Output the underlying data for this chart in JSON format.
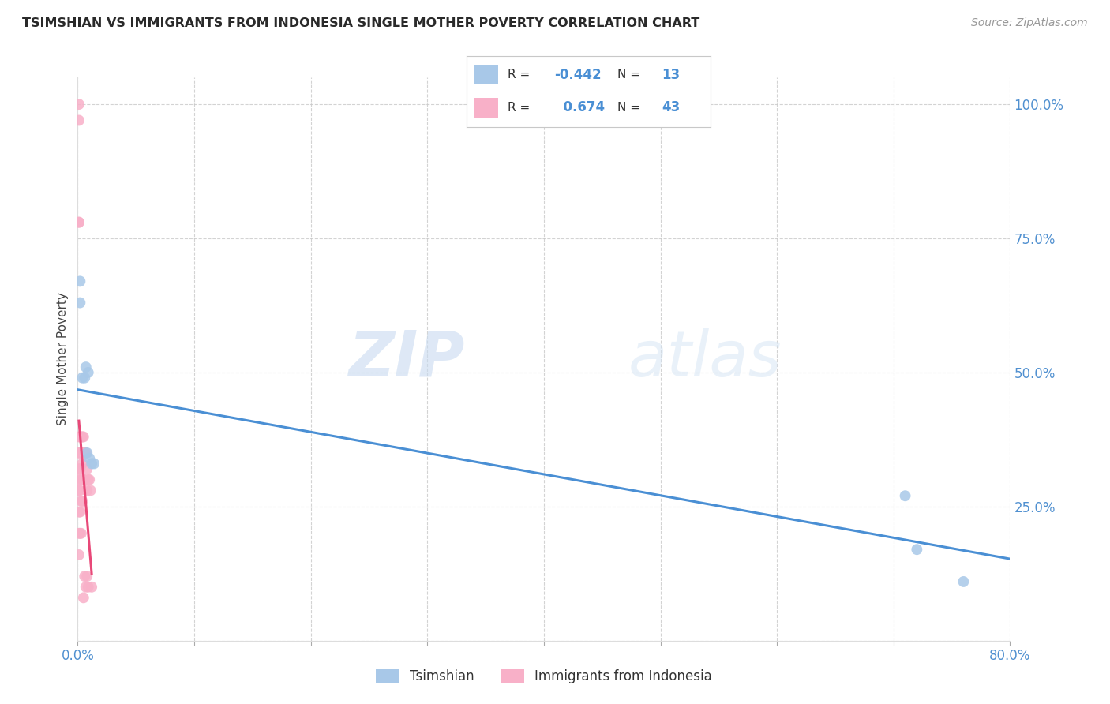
{
  "title": "TSIMSHIAN VS IMMIGRANTS FROM INDONESIA SINGLE MOTHER POVERTY CORRELATION CHART",
  "source": "Source: ZipAtlas.com",
  "ylabel": "Single Mother Poverty",
  "legend_tsimshian": "Tsimshian",
  "legend_indonesia": "Immigrants from Indonesia",
  "r_tsimshian": -0.442,
  "n_tsimshian": 13,
  "r_indonesia": 0.674,
  "n_indonesia": 43,
  "tsimshian_color": "#a8c8e8",
  "indonesia_color": "#f8b0c8",
  "tsimshian_line_color": "#4a8fd4",
  "indonesia_line_color": "#e84878",
  "watermark_zip": "ZIP",
  "watermark_atlas": "atlas",
  "tsimshian_x": [
    0.002,
    0.002,
    0.004,
    0.006,
    0.007,
    0.008,
    0.009,
    0.01,
    0.012,
    0.014,
    0.71,
    0.72,
    0.76
  ],
  "tsimshian_y": [
    0.63,
    0.67,
    0.49,
    0.49,
    0.51,
    0.35,
    0.5,
    0.34,
    0.33,
    0.33,
    0.27,
    0.17,
    0.11
  ],
  "indonesia_x": [
    0.001,
    0.001,
    0.001,
    0.001,
    0.001,
    0.001,
    0.001,
    0.001,
    0.001,
    0.001,
    0.001,
    0.001,
    0.002,
    0.002,
    0.002,
    0.002,
    0.002,
    0.002,
    0.003,
    0.003,
    0.003,
    0.003,
    0.003,
    0.004,
    0.004,
    0.004,
    0.005,
    0.005,
    0.005,
    0.005,
    0.006,
    0.006,
    0.006,
    0.007,
    0.007,
    0.008,
    0.008,
    0.008,
    0.009,
    0.009,
    0.01,
    0.011,
    0.012
  ],
  "indonesia_y": [
    0.97,
    1.0,
    0.78,
    0.78,
    0.38,
    0.35,
    0.32,
    0.3,
    0.28,
    0.24,
    0.2,
    0.16,
    0.38,
    0.35,
    0.32,
    0.28,
    0.24,
    0.2,
    0.38,
    0.35,
    0.3,
    0.26,
    0.2,
    0.38,
    0.33,
    0.26,
    0.38,
    0.35,
    0.3,
    0.08,
    0.35,
    0.3,
    0.12,
    0.35,
    0.1,
    0.32,
    0.28,
    0.12,
    0.3,
    0.1,
    0.3,
    0.28,
    0.1
  ],
  "xmin": 0.0,
  "xmax": 0.8,
  "ymin": 0.0,
  "ymax": 1.05,
  "yticks": [
    0.0,
    0.25,
    0.5,
    0.75,
    1.0
  ],
  "ytick_labels": [
    "",
    "25.0%",
    "50.0%",
    "75.0%",
    "100.0%"
  ],
  "xtick_labels": [
    "0.0%",
    "",
    "",
    "",
    "",
    "",
    "",
    "",
    "80.0%"
  ]
}
